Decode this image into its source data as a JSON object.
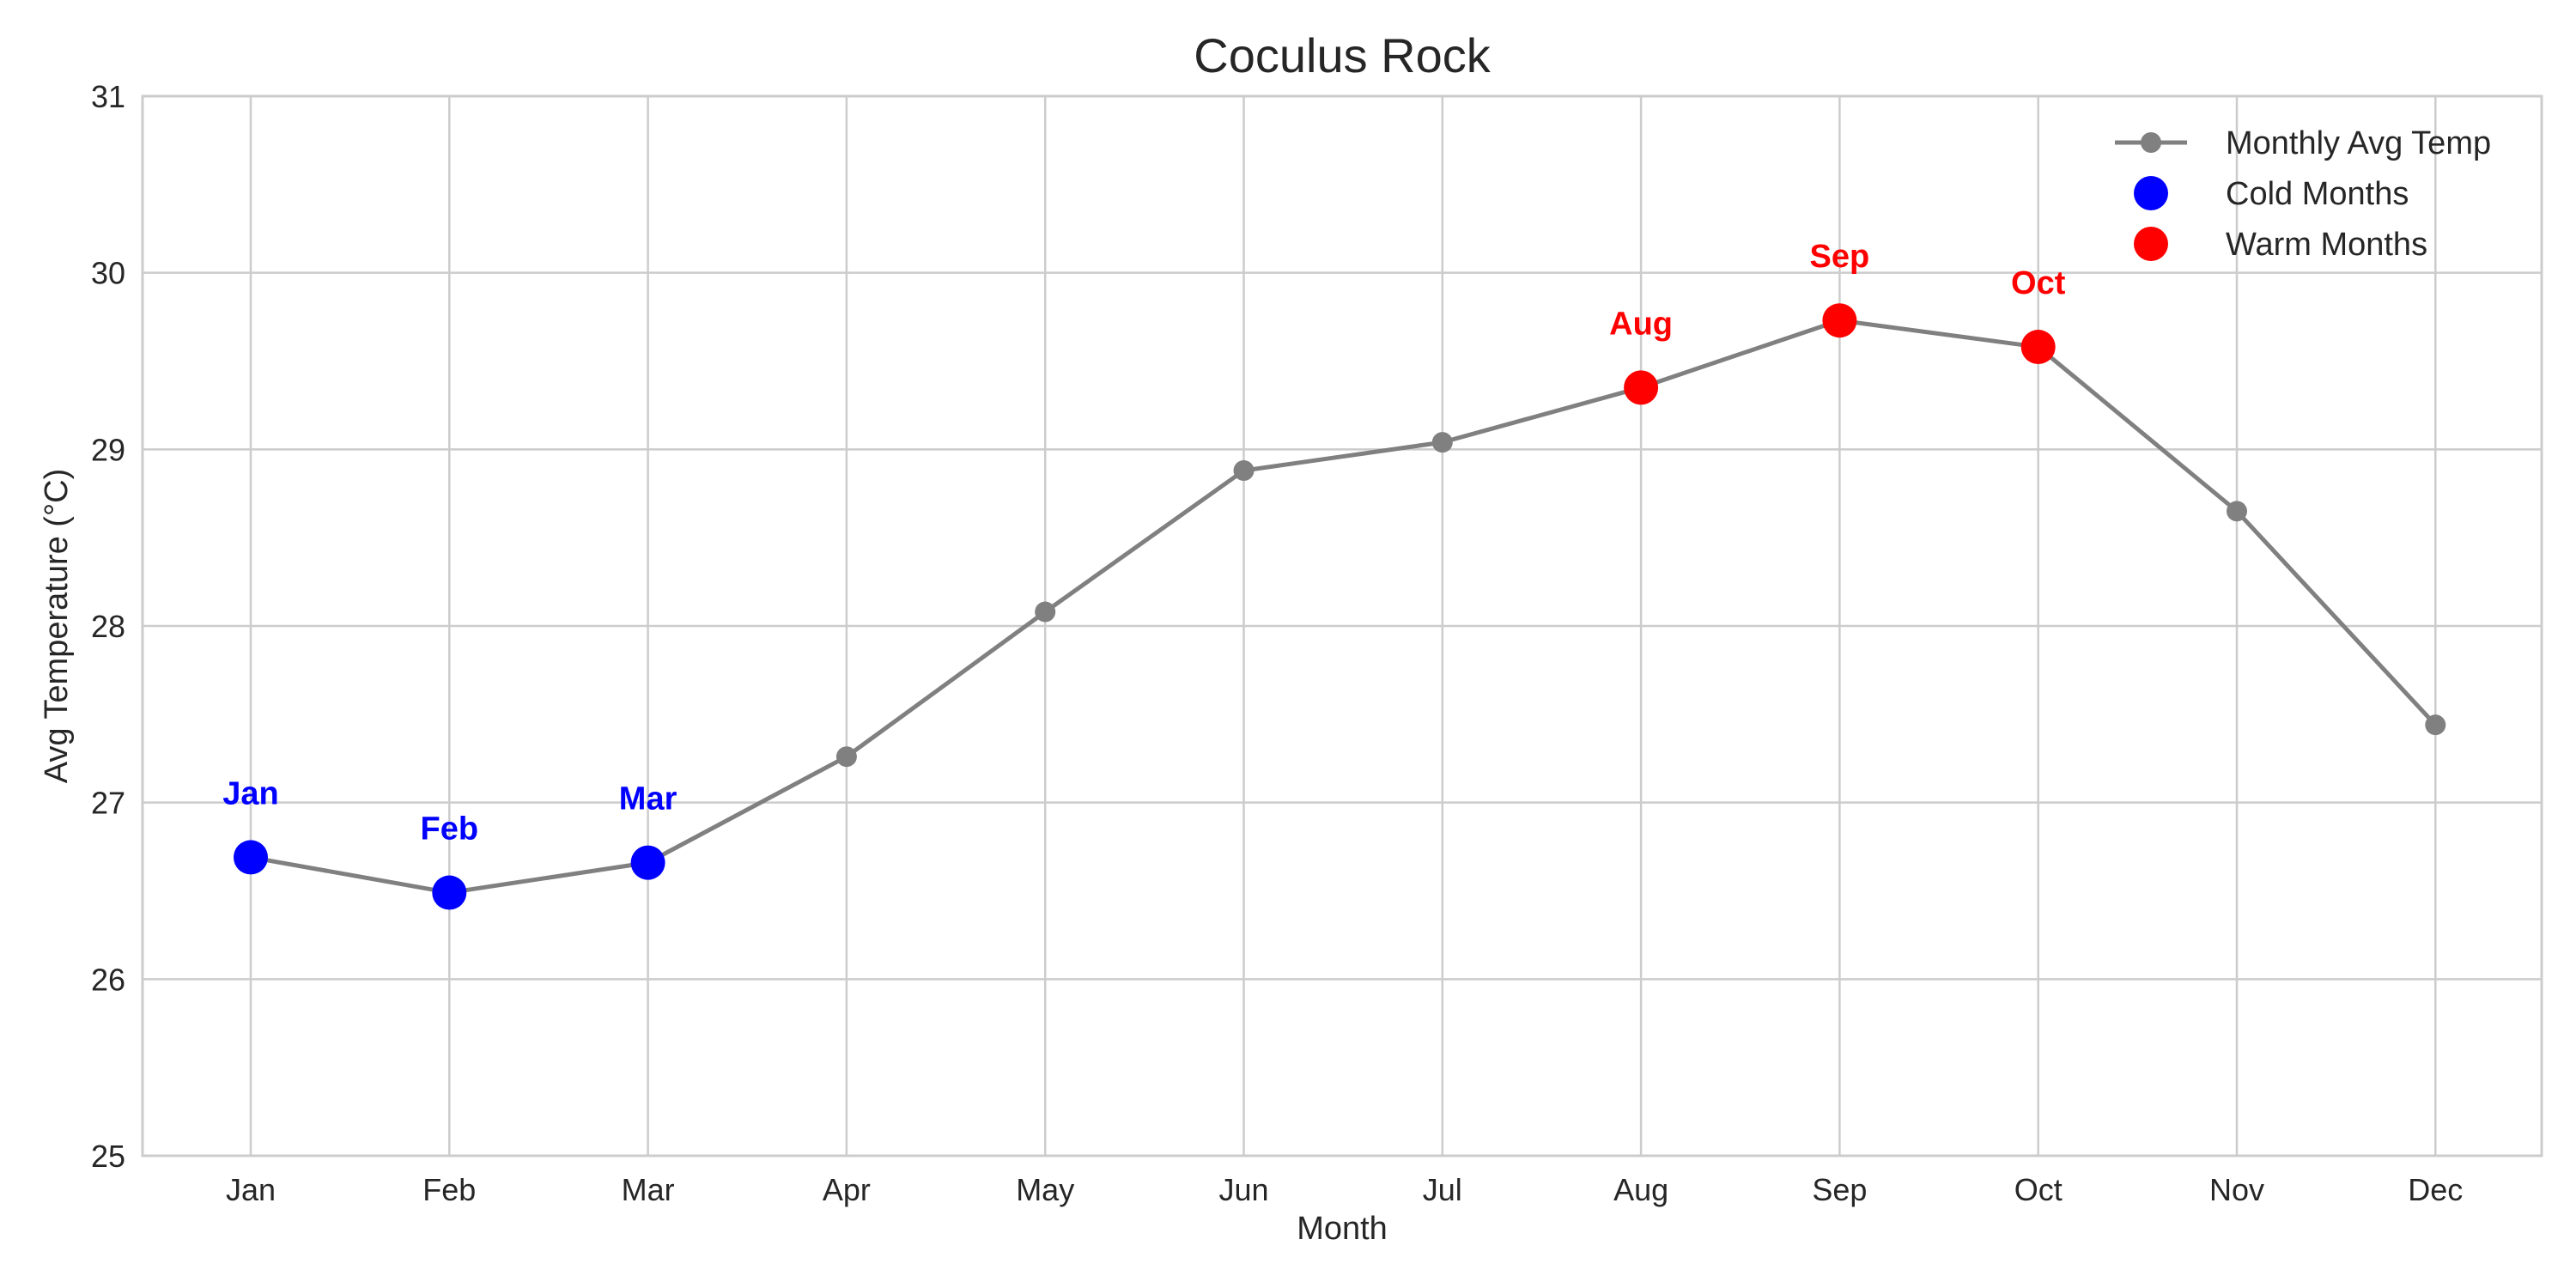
{
  "chart_data": {
    "type": "line",
    "title": "Coculus Rock",
    "xlabel": "Month",
    "ylabel": "Avg Temperature (°C)",
    "ylim": [
      25,
      31
    ],
    "yticks": [
      25,
      26,
      27,
      28,
      29,
      30,
      31
    ],
    "grid": true,
    "legend_position": "top-right",
    "categories": [
      "Jan",
      "Feb",
      "Mar",
      "Apr",
      "May",
      "Jun",
      "Jul",
      "Aug",
      "Sep",
      "Oct",
      "Nov",
      "Dec"
    ],
    "series": [
      {
        "name": "Monthly Avg Temp",
        "type": "line",
        "color": "#808080",
        "values": [
          26.69,
          26.49,
          26.66,
          27.26,
          28.08,
          28.88,
          29.04,
          29.35,
          29.73,
          29.58,
          28.65,
          27.44
        ]
      },
      {
        "name": "Cold Months",
        "type": "scatter",
        "color": "#0000ff",
        "months": [
          "Jan",
          "Feb",
          "Mar"
        ],
        "values": [
          26.69,
          26.49,
          26.66
        ]
      },
      {
        "name": "Warm Months",
        "type": "scatter",
        "color": "#ff0000",
        "months": [
          "Aug",
          "Sep",
          "Oct"
        ],
        "values": [
          29.35,
          29.73,
          29.58
        ]
      }
    ],
    "annotations": [
      {
        "text": "Jan",
        "month": "Jan",
        "color": "#0000ff"
      },
      {
        "text": "Feb",
        "month": "Feb",
        "color": "#0000ff"
      },
      {
        "text": "Mar",
        "month": "Mar",
        "color": "#0000ff"
      },
      {
        "text": "Aug",
        "month": "Aug",
        "color": "#ff0000"
      },
      {
        "text": "Sep",
        "month": "Sep",
        "color": "#ff0000"
      },
      {
        "text": "Oct",
        "month": "Oct",
        "color": "#ff0000"
      }
    ]
  }
}
